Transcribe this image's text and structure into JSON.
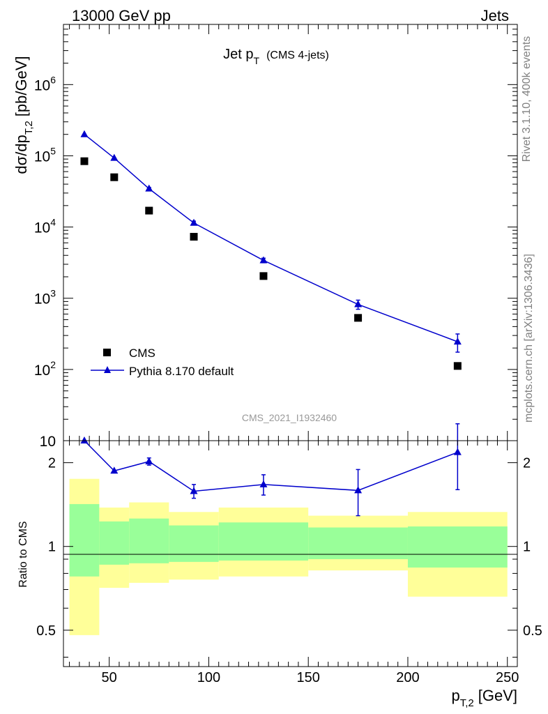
{
  "header": {
    "left": "13000 GeV pp",
    "right": "Jets"
  },
  "side_labels": {
    "rivet": "Rivet 3.1.10,  400k events",
    "mcplots": "mcplots.cern.ch [arXiv:1306.3436]"
  },
  "colors": {
    "data": "#000000",
    "mc": "#0000cc",
    "band_inner": "#99ff99",
    "band_outer": "#ffff99",
    "watermark": "#999999",
    "side_label": "#808080"
  },
  "chart_data": [
    {
      "type": "scatter",
      "title": "Jet p_T (CMS 4-jets)",
      "title_main": "Jet p",
      "title_sub": "T",
      "title_note": "(CMS 4-jets)",
      "ylabel": "dσ/dp_T,2 [pb/GeV]",
      "ylabel_main": "dσ/dp",
      "ylabel_sub": "T,2",
      "ylabel_unit": "[pb/GeV]",
      "yscale": "log",
      "ylim": [
        10,
        7000000
      ],
      "xlim": [
        27,
        255
      ],
      "y_ticks": [
        {
          "value": 10,
          "base": "10",
          "exp": ""
        },
        {
          "value": 100,
          "base": "10",
          "exp": "2"
        },
        {
          "value": 1000,
          "base": "10",
          "exp": "3"
        },
        {
          "value": 10000,
          "base": "10",
          "exp": "4"
        },
        {
          "value": 100000,
          "base": "10",
          "exp": "5"
        },
        {
          "value": 1000000,
          "base": "10",
          "exp": "6"
        }
      ],
      "watermark": "CMS_2021_I1932460",
      "legend_position": "lower-left",
      "series": [
        {
          "name": "CMS",
          "marker": "square",
          "x": [
            37.5,
            52.5,
            70,
            92.5,
            127.5,
            175,
            225
          ],
          "y": [
            84000,
            50000,
            17000,
            7300,
            2050,
            530,
            112
          ],
          "yerr": [
            0,
            0,
            0,
            0,
            0,
            0,
            0
          ]
        },
        {
          "name": "Pythia 8.170 default",
          "marker": "triangle",
          "line": true,
          "x": [
            37.5,
            52.5,
            70,
            92.5,
            127.5,
            175,
            225
          ],
          "y": [
            200000,
            93000,
            34500,
            11400,
            3400,
            820,
            245
          ],
          "yerr": [
            0,
            0,
            1500,
            700,
            250,
            120,
            70
          ]
        }
      ]
    },
    {
      "type": "scatter",
      "ylabel": "Ratio to CMS",
      "xlabel": "p_T,2 [GeV]",
      "xlabel_main": "p",
      "xlabel_sub": "T,2",
      "xlabel_unit": "[GeV]",
      "yscale": "log",
      "ylim": [
        0.37,
        2.4
      ],
      "xlim": [
        27,
        255
      ],
      "x_ticks": [
        50,
        100,
        150,
        200,
        250
      ],
      "y_ticks": [
        {
          "value": 0.5,
          "label": "0.5"
        },
        {
          "value": 1,
          "label": "1"
        },
        {
          "value": 2,
          "label": "2"
        }
      ],
      "bands": [
        {
          "x0": 30,
          "x1": 45,
          "inner": [
            0.78,
            1.42
          ],
          "outer": [
            0.48,
            1.75
          ]
        },
        {
          "x0": 45,
          "x1": 60,
          "inner": [
            0.86,
            1.23
          ],
          "outer": [
            0.71,
            1.38
          ]
        },
        {
          "x0": 60,
          "x1": 80,
          "inner": [
            0.87,
            1.26
          ],
          "outer": [
            0.74,
            1.44
          ]
        },
        {
          "x0": 80,
          "x1": 105,
          "inner": [
            0.88,
            1.19
          ],
          "outer": [
            0.76,
            1.33
          ]
        },
        {
          "x0": 105,
          "x1": 150,
          "inner": [
            0.89,
            1.22
          ],
          "outer": [
            0.78,
            1.38
          ]
        },
        {
          "x0": 150,
          "x1": 200,
          "inner": [
            0.9,
            1.17
          ],
          "outer": [
            0.82,
            1.29
          ]
        },
        {
          "x0": 200,
          "x1": 250,
          "inner": [
            0.84,
            1.18
          ],
          "outer": [
            0.66,
            1.33
          ]
        }
      ],
      "series": [
        {
          "name": "Pythia 8.170 default / CMS",
          "marker": "triangle",
          "line": true,
          "x": [
            37.5,
            52.5,
            70,
            92.5,
            127.5,
            175,
            225
          ],
          "y": [
            2.4,
            1.87,
            2.02,
            1.58,
            1.67,
            1.59,
            2.18
          ],
          "yerr": [
            0,
            0,
            0.06,
            0.09,
            0.14,
            0.3,
            0.58
          ]
        }
      ]
    }
  ]
}
